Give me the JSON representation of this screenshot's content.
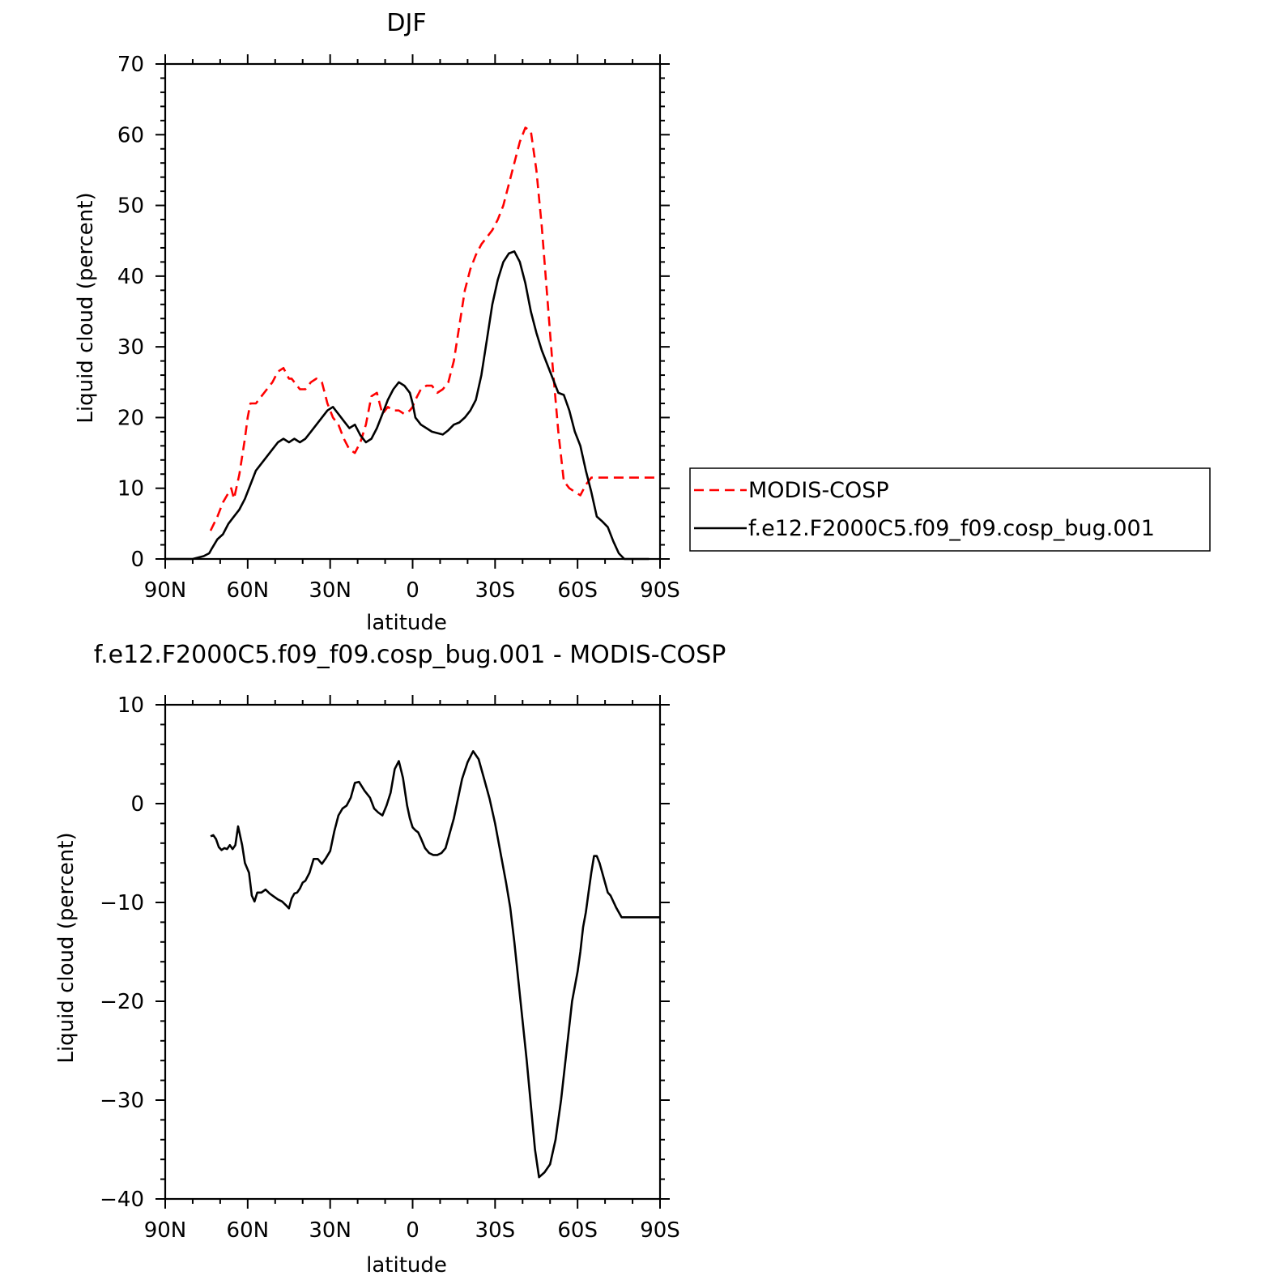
{
  "chart_data": [
    {
      "type": "line",
      "title": "DJF",
      "xlabel": "latitude",
      "ylabel": "Liquid cloud (percent)",
      "xlim": [
        90,
        -90
      ],
      "ylim": [
        0,
        70
      ],
      "x_ticks": [
        90,
        60,
        30,
        0,
        -30,
        -60,
        -90
      ],
      "x_tick_labels": [
        "90N",
        "60N",
        "30N",
        "0",
        "30S",
        "60S",
        "90S"
      ],
      "y_ticks": [
        0,
        10,
        20,
        30,
        40,
        50,
        60,
        70
      ],
      "y_tick_labels": [
        "0",
        "10",
        "20",
        "30",
        "40",
        "50",
        "60",
        "70"
      ],
      "grid": false,
      "legend_position": "right, outside plot",
      "legend": [
        "MODIS-COSP",
        "f.e12.F2000C5.f09_f09.cosp_bug.001"
      ],
      "series": [
        {
          "name": "MODIS-COSP",
          "color": "#ff0000",
          "style": "dashed",
          "x": [
            73.5,
            71,
            69,
            67.5,
            66,
            65,
            63,
            61,
            60,
            59,
            57,
            55,
            53,
            51,
            49,
            47,
            45,
            44,
            43,
            41,
            39,
            37,
            35,
            33,
            31,
            29,
            27,
            25,
            23,
            21,
            19,
            17,
            15,
            13,
            11,
            9,
            7,
            5,
            3,
            1,
            0,
            -1,
            -3,
            -5,
            -7,
            -9,
            -11,
            -13,
            -15,
            -17,
            -19,
            -21,
            -23,
            -25,
            -27,
            -29,
            -31,
            -33,
            -35,
            -37,
            -39,
            -41,
            -43,
            -45,
            -47,
            -49,
            -51,
            -53,
            -55,
            -57,
            -59,
            -61,
            -63,
            -65,
            -67,
            -69,
            -71,
            -73,
            -75,
            -77,
            -79,
            -81,
            -83,
            -85,
            -87,
            -89,
            -90
          ],
          "values": [
            4,
            6,
            8,
            9,
            10,
            8.5,
            12,
            17,
            20,
            22,
            22,
            23,
            24,
            25,
            26.5,
            27,
            25.5,
            25.5,
            25,
            24,
            24,
            25,
            25.5,
            25,
            22,
            20,
            19,
            17,
            15.5,
            15,
            16.5,
            19,
            23,
            23.5,
            20.5,
            21.5,
            21,
            21,
            20.5,
            21,
            21.5,
            22.5,
            24,
            24.5,
            24.5,
            23.5,
            24,
            25,
            28,
            33,
            38,
            41,
            43,
            44.5,
            45.5,
            46.5,
            48,
            50,
            53,
            56,
            59,
            61,
            60.5,
            55,
            47,
            37,
            27,
            18,
            11,
            10,
            9.5,
            9,
            10.5,
            11.5,
            11.5,
            11.5,
            11.5,
            11.5,
            11.5,
            11.5,
            11.5,
            11.5,
            11.5,
            11.5,
            11.5,
            11.5,
            11.5
          ]
        },
        {
          "name": "f.e12.F2000C5.f09_f09.cosp_bug.001",
          "color": "#000000",
          "style": "solid",
          "x": [
            90,
            80,
            78,
            76,
            74,
            73,
            71,
            69,
            67,
            65,
            63,
            61,
            59,
            57,
            55,
            53,
            51,
            49,
            47,
            45,
            43,
            41,
            39,
            37,
            35,
            33,
            31,
            29,
            27,
            25,
            23,
            21,
            19,
            17,
            15,
            13,
            11,
            9,
            7,
            5,
            3,
            1,
            0,
            -1,
            -3,
            -5,
            -7,
            -9,
            -11,
            -13,
            -15,
            -17,
            -19,
            -21,
            -23,
            -25,
            -27,
            -29,
            -31,
            -33,
            -35,
            -37,
            -39,
            -41,
            -43,
            -45,
            -47,
            -49,
            -51,
            -53,
            -55,
            -57,
            -59,
            -61,
            -63,
            -65,
            -67,
            -69,
            -71,
            -73,
            -75,
            -77,
            -79,
            -81,
            -83,
            -85,
            -86
          ],
          "values": [
            0,
            0,
            0.2,
            0.4,
            0.8,
            1.5,
            2.8,
            3.5,
            5,
            6,
            7,
            8.5,
            10.5,
            12.5,
            13.5,
            14.5,
            15.5,
            16.5,
            17,
            16.5,
            17,
            16.5,
            17,
            18,
            19,
            20,
            21,
            21.5,
            20.5,
            19.5,
            18.5,
            19,
            17.5,
            16.5,
            17,
            18.5,
            20.5,
            22.5,
            24,
            25,
            24.5,
            23.5,
            22,
            20,
            19,
            18.5,
            18,
            17.8,
            17.6,
            18.2,
            19,
            19.3,
            20,
            21,
            22.5,
            26,
            31,
            36,
            39.5,
            42,
            43.2,
            43.5,
            42,
            39,
            35,
            32,
            29.5,
            27.5,
            25.5,
            23.5,
            23.2,
            21,
            18,
            16,
            12.5,
            9.5,
            6,
            5.3,
            4.5,
            2.5,
            0.8,
            0,
            0,
            0,
            0,
            0,
            0
          ]
        }
      ]
    },
    {
      "type": "line",
      "title": "f.e12.F2000C5.f09_f09.cosp_bug.001 - MODIS-COSP",
      "xlabel": "latitude",
      "ylabel": "Liquid cloud (percent)",
      "xlim": [
        90,
        -90
      ],
      "ylim": [
        -40,
        10
      ],
      "x_ticks": [
        90,
        60,
        30,
        0,
        -30,
        -60,
        -90
      ],
      "x_tick_labels": [
        "90N",
        "60N",
        "30N",
        "0",
        "30S",
        "60S",
        "90S"
      ],
      "y_ticks": [
        -40,
        -30,
        -20,
        -10,
        0,
        10
      ],
      "y_tick_labels": [
        "−40",
        "−30",
        "−20",
        "−10",
        "0",
        "10"
      ],
      "grid": false,
      "series": [
        {
          "color": "#000000",
          "style": "solid",
          "x": [
            73.5,
            72.5,
            71.5,
            70.5,
            69.5,
            68.5,
            67.5,
            66.5,
            65.5,
            64.5,
            63.5,
            62,
            61,
            59.5,
            58.5,
            57.5,
            56.5,
            55,
            53.5,
            52,
            50.5,
            49,
            47.5,
            46,
            45,
            44,
            43,
            42,
            41,
            40,
            39,
            37.5,
            36,
            34.5,
            33,
            31.5,
            30,
            28.5,
            27,
            25.5,
            24,
            22.5,
            21,
            19.5,
            17.5,
            15.5,
            14,
            12.5,
            11,
            9.5,
            8,
            6.5,
            5,
            3.5,
            2,
            1,
            0,
            -1,
            -2,
            -3,
            -4.5,
            -6,
            -7.5,
            -9,
            -10.5,
            -12,
            -13.5,
            -15,
            -16.5,
            -18,
            -20,
            -22,
            -24,
            -26,
            -28,
            -30,
            -32,
            -34,
            -35.5,
            -37,
            -38.5,
            -40,
            -41.5,
            -43,
            -44.5,
            -46,
            -48,
            -50,
            -52,
            -54,
            -56,
            -58,
            -60,
            -61,
            -62,
            -63,
            -64,
            -65,
            -66,
            -67,
            -68,
            -69,
            -70,
            -71,
            -72,
            -74,
            -76,
            -78,
            -80,
            -81,
            -82,
            -83,
            -84,
            -85,
            -86,
            -87,
            -88,
            -89,
            -90
          ],
          "values": [
            -3.3,
            -3.2,
            -3.6,
            -4.4,
            -4.7,
            -4.5,
            -4.6,
            -4.2,
            -4.6,
            -4.2,
            -2.3,
            -4.2,
            -6,
            -7,
            -9.3,
            -9.9,
            -9,
            -9,
            -8.7,
            -9.1,
            -9.4,
            -9.7,
            -9.9,
            -10.3,
            -10.6,
            -9.6,
            -9.1,
            -9,
            -8.6,
            -8,
            -7.8,
            -7,
            -5.6,
            -5.6,
            -6.1,
            -5.5,
            -4.8,
            -2.8,
            -1.2,
            -0.5,
            -0.2,
            0.6,
            2.1,
            2.2,
            1.3,
            0.6,
            -0.5,
            -0.9,
            -1.2,
            -0.2,
            1.1,
            3.5,
            4.3,
            2.6,
            -0.2,
            -1.5,
            -2.4,
            -2.7,
            -2.9,
            -3.5,
            -4.5,
            -5,
            -5.2,
            -5.2,
            -5,
            -4.5,
            -3,
            -1.5,
            0.5,
            2.5,
            4.2,
            5.3,
            4.5,
            2.5,
            0.5,
            -2,
            -5,
            -8,
            -10.5,
            -14,
            -18,
            -22,
            -26,
            -30.5,
            -35,
            -37.8,
            -37.3,
            -36.5,
            -34,
            -30,
            -25,
            -20,
            -17,
            -15,
            -12.5,
            -11,
            -9,
            -7,
            -5.3,
            -5.3,
            -6,
            -7,
            -8,
            -9,
            -9.3,
            -10.5,
            -11.5,
            -11.5,
            -11.5,
            -11.5,
            -11.5,
            -11.5,
            -11.5,
            -11.5,
            -11.5,
            -11.5,
            -11.5,
            -11.5,
            -11.5
          ]
        }
      ]
    }
  ]
}
